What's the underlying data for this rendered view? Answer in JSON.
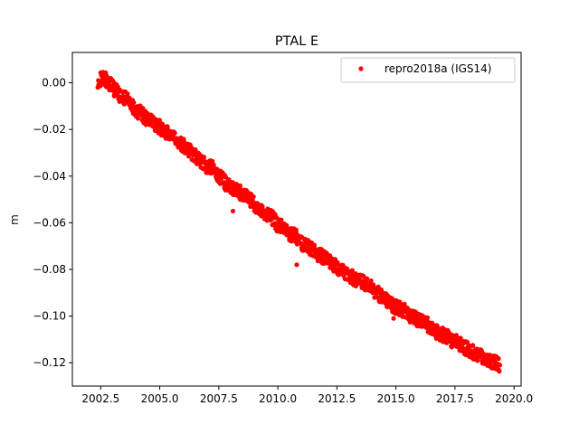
{
  "chart_data": {
    "type": "scatter",
    "title": "PTAL E",
    "xlabel": "",
    "ylabel": "m",
    "xlim": [
      2001.3,
      2020.3
    ],
    "ylim": [
      -0.13,
      0.013
    ],
    "grid": false,
    "legend_position": "top-right",
    "x_ticks": [
      2002.5,
      2005.0,
      2007.5,
      2010.0,
      2012.5,
      2015.0,
      2017.5,
      2020.0
    ],
    "x_tick_labels": [
      "2002.5",
      "2005.0",
      "2007.5",
      "2010.0",
      "2012.5",
      "2015.0",
      "2017.5",
      "2020.0"
    ],
    "y_ticks": [
      0.0,
      -0.02,
      -0.04,
      -0.06,
      -0.08,
      -0.1,
      -0.12
    ],
    "y_tick_labels": [
      "0.00",
      "−0.02",
      "−0.04",
      "−0.06",
      "−0.08",
      "−0.10",
      "−0.12"
    ],
    "series": [
      {
        "name": "repro2018a (IGS14)",
        "color": "#ff0000",
        "marker": "circle",
        "trend": {
          "x": [
            2002.4,
            2019.5
          ],
          "y": [
            0.001,
            -0.1205
          ]
        },
        "x": [
          2002.4,
          2002.6,
          2002.8,
          2003.0,
          2003.2,
          2003.4,
          2003.6,
          2003.8,
          2004.0,
          2004.2,
          2004.4,
          2004.6,
          2004.8,
          2005.0,
          2005.2,
          2005.4,
          2005.6,
          2005.8,
          2006.0,
          2006.2,
          2006.4,
          2006.6,
          2006.8,
          2007.0,
          2007.2,
          2007.4,
          2007.6,
          2007.8,
          2008.0,
          2008.2,
          2008.4,
          2008.6,
          2008.8,
          2009.0,
          2009.2,
          2009.4,
          2009.6,
          2009.8,
          2010.0,
          2010.2,
          2010.4,
          2010.6,
          2010.8,
          2011.0,
          2011.2,
          2011.4,
          2011.6,
          2011.8,
          2012.0,
          2012.2,
          2012.4,
          2012.6,
          2012.8,
          2013.0,
          2013.2,
          2013.4,
          2013.6,
          2013.8,
          2014.0,
          2014.2,
          2014.4,
          2014.6,
          2014.8,
          2015.0,
          2015.2,
          2015.4,
          2015.6,
          2015.8,
          2016.0,
          2016.2,
          2016.4,
          2016.6,
          2016.8,
          2017.0,
          2017.2,
          2017.4,
          2017.6,
          2017.8,
          2018.0,
          2018.2,
          2018.4,
          2018.6,
          2018.8,
          2019.0,
          2019.2,
          2019.4,
          2010.8,
          2014.9,
          2008.1
        ],
        "y": [
          0.001,
          0.002,
          0.001,
          -0.002,
          -0.004,
          -0.006,
          -0.007,
          -0.009,
          -0.012,
          -0.013,
          -0.015,
          -0.016,
          -0.018,
          -0.019,
          -0.021,
          -0.022,
          -0.024,
          -0.026,
          -0.027,
          -0.028,
          -0.031,
          -0.032,
          -0.034,
          -0.036,
          -0.036,
          -0.039,
          -0.041,
          -0.043,
          -0.045,
          -0.046,
          -0.047,
          -0.048,
          -0.05,
          -0.052,
          -0.054,
          -0.056,
          -0.057,
          -0.058,
          -0.061,
          -0.062,
          -0.064,
          -0.065,
          -0.066,
          -0.069,
          -0.07,
          -0.071,
          -0.073,
          -0.074,
          -0.075,
          -0.077,
          -0.078,
          -0.08,
          -0.081,
          -0.082,
          -0.084,
          -0.085,
          -0.085,
          -0.087,
          -0.088,
          -0.09,
          -0.092,
          -0.093,
          -0.095,
          -0.096,
          -0.097,
          -0.098,
          -0.1,
          -0.101,
          -0.102,
          -0.103,
          -0.104,
          -0.106,
          -0.107,
          -0.108,
          -0.109,
          -0.111,
          -0.111,
          -0.113,
          -0.114,
          -0.115,
          -0.116,
          -0.117,
          -0.118,
          -0.119,
          -0.12,
          -0.121,
          -0.078,
          -0.101,
          -0.055
        ]
      }
    ]
  }
}
